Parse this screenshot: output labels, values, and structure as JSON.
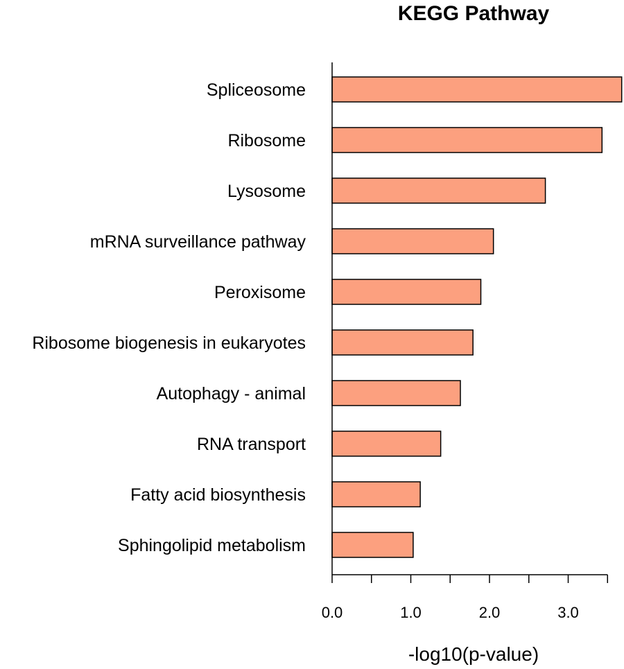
{
  "chart_data": {
    "type": "bar",
    "orientation": "horizontal",
    "title": "KEGG Pathway",
    "xlabel": "-log10(p-value)",
    "ylabel": "",
    "categories": [
      "Spliceosome",
      "Ribosome",
      "Lysosome",
      "mRNA surveillance pathway",
      "Peroxisome",
      "Ribosome biogenesis in eukaryotes",
      "Autophagy - animal",
      "RNA transport",
      "Fatty acid biosynthesis",
      "Sphingolipid metabolism"
    ],
    "values": [
      3.68,
      3.43,
      2.71,
      2.05,
      1.89,
      1.79,
      1.63,
      1.38,
      1.12,
      1.03
    ],
    "xlim": [
      0,
      3.5
    ],
    "xticks": [
      0.0,
      0.5,
      1.0,
      1.5,
      2.0,
      2.5,
      3.0,
      3.5
    ],
    "xtick_labels": [
      "0.0",
      "",
      "1.0",
      "",
      "2.0",
      "",
      "3.0",
      ""
    ],
    "bar_color": "#FCA07F",
    "grid": false,
    "legend": "none"
  }
}
